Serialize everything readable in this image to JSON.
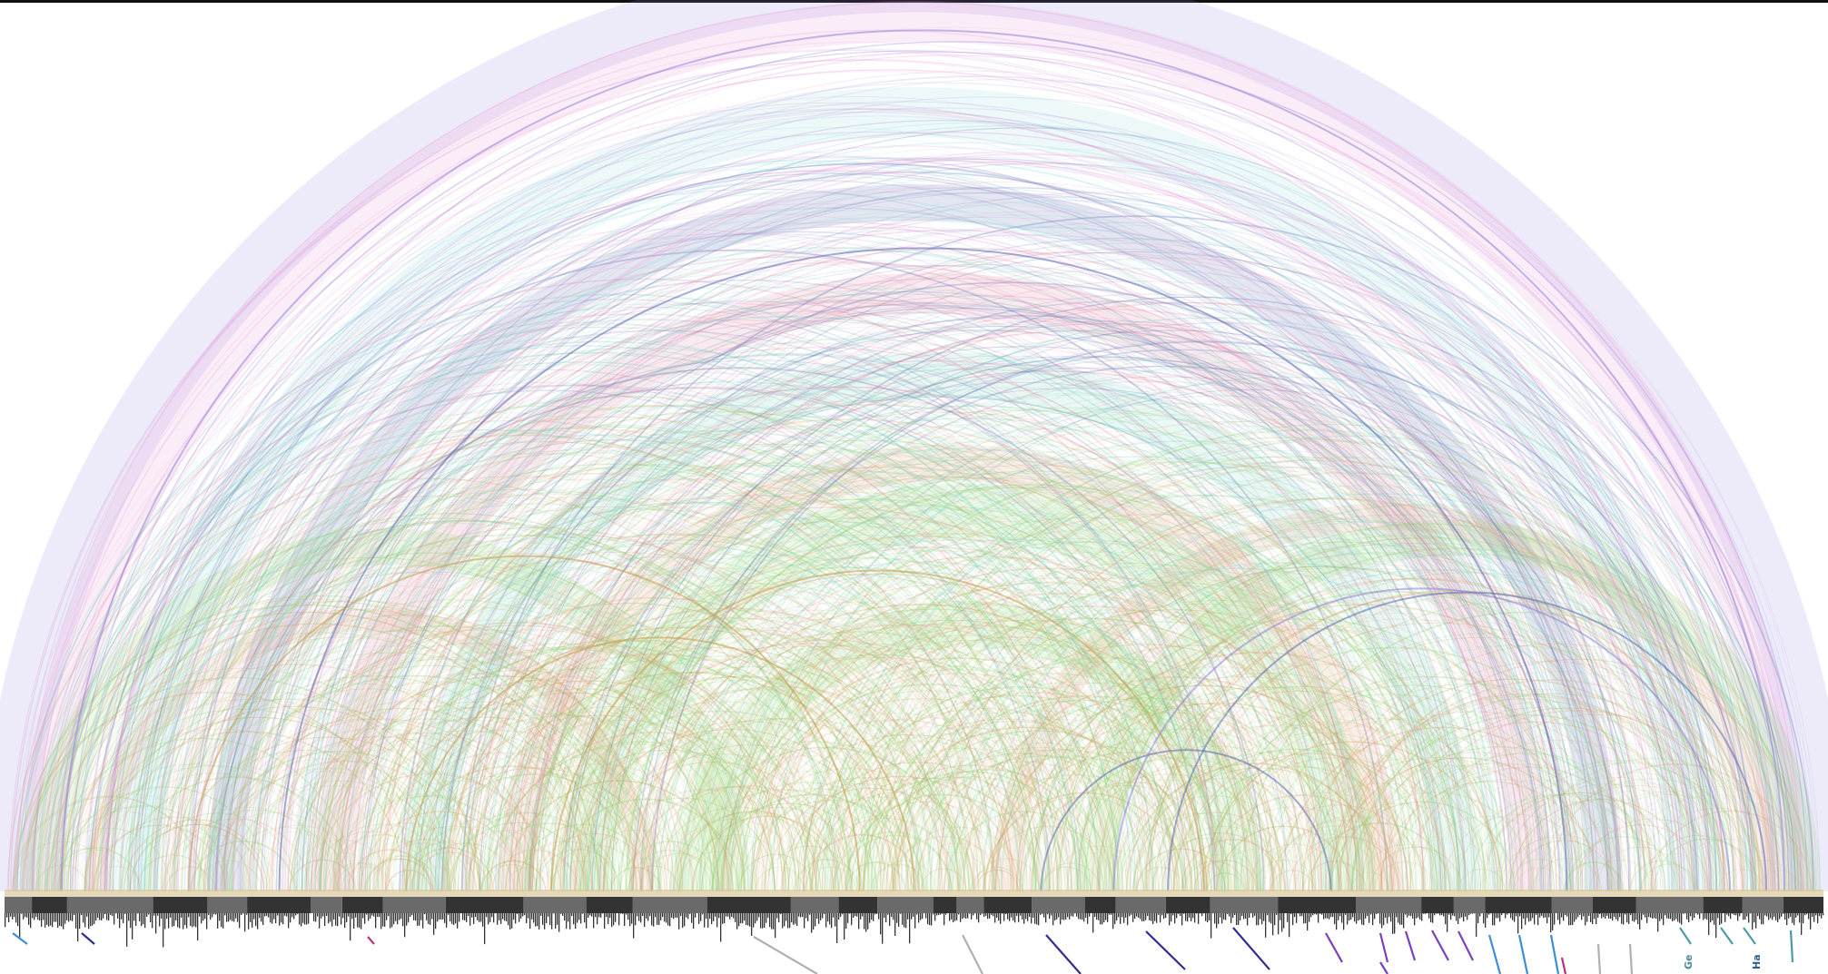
{
  "diagram": {
    "type": "arc-diagram",
    "description_visible": false,
    "band_colors": [
      "#8f7fd8",
      "#e58fd2",
      "#8fd9dc",
      "#5a6ab0",
      "#e07a9a",
      "#7fd2bf",
      "#e39a78",
      "#8fd16a",
      "#c89a4a"
    ],
    "bar_color": "#333333",
    "bar_shade": "#6a6a6a",
    "tick_colors": [
      "#7a3fbf",
      "#2f2f8f",
      "#b7347a",
      "#3a8fd8",
      "#4a9aa8",
      "#b0b0b0"
    ],
    "labels": [
      "Ge",
      "Ha"
    ]
  }
}
